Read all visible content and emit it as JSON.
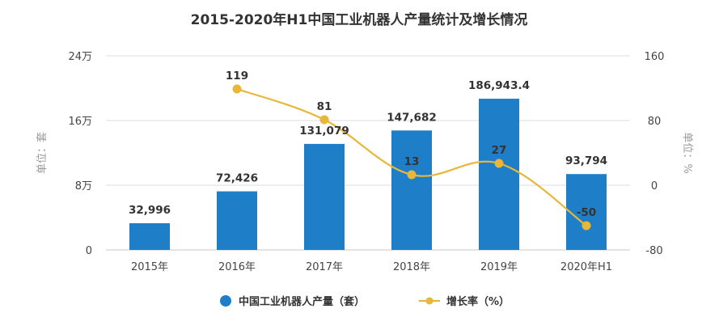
{
  "colors": {
    "bar": "#1f7ec8",
    "line": "#e8b63a",
    "grid": "#dcdcdc",
    "text": "#333333",
    "axis_text": "#444444",
    "unit_text": "#999999"
  },
  "chart_data": {
    "type": "bar+line",
    "title": "2015-2020年H1中国工业机器人产量统计及增长情况",
    "categories": [
      "2015年",
      "2016年",
      "2017年",
      "2018年",
      "2019年",
      "2020年H1"
    ],
    "series": [
      {
        "name": "中国工业机器人产量（套）",
        "type": "bar",
        "axis": "left",
        "values": [
          32996,
          72426,
          131079,
          147682,
          186943.4,
          93794
        ],
        "labels": [
          "32,996",
          "72,426",
          "131,079",
          "147,682",
          "186,943.4",
          "93,794"
        ]
      },
      {
        "name": "增长率（%）",
        "type": "line",
        "axis": "right",
        "values": [
          null,
          119,
          81,
          13,
          27,
          -50
        ],
        "labels": [
          "",
          "119",
          "81",
          "13",
          "27",
          "-50"
        ]
      }
    ],
    "left_axis": {
      "label": "单位：套",
      "ylim": [
        0,
        240000
      ],
      "ticks": [
        0,
        80000,
        160000,
        240000
      ],
      "tick_labels": [
        "0",
        "8万",
        "16万",
        "24万"
      ]
    },
    "right_axis": {
      "label": "单位：%",
      "ylim": [
        -80,
        160
      ],
      "ticks": [
        -80,
        0,
        80,
        160
      ],
      "tick_labels": [
        "-80",
        "0",
        "80",
        "160"
      ]
    },
    "grid": true,
    "legend": "bottom-center"
  }
}
